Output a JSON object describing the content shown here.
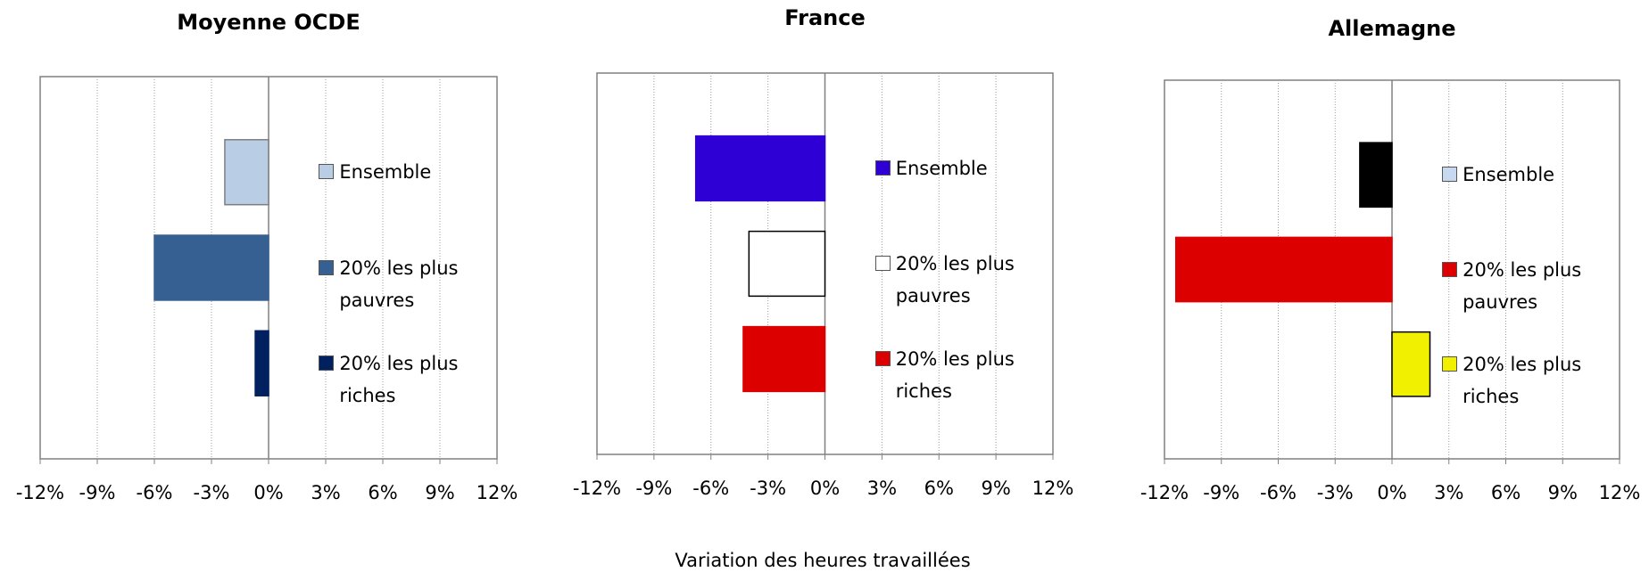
{
  "x_label": "Variation des heures travaillées",
  "chart_data": [
    {
      "type": "hbar",
      "title": "Moyenne OCDE",
      "categories": [
        "Ensemble",
        "20% les plus pauvres",
        "20% les plus riches"
      ],
      "values": [
        -2.3,
        -6,
        -0.7
      ],
      "colors": [
        "#b9cde5",
        "#376092",
        "#002060"
      ],
      "edge_colors": [
        "#7f7f7f",
        "#376092",
        "#002060"
      ],
      "legend_colors": [
        "#b9cde5",
        "#376092",
        "#002060"
      ],
      "xlim": [
        -12,
        12
      ],
      "xticks": [
        {
          "value": -12,
          "label": "-12%"
        },
        {
          "value": -9,
          "label": "-9%"
        },
        {
          "value": -6,
          "label": "-6%"
        },
        {
          "value": -3,
          "label": "-3%"
        },
        {
          "value": 0,
          "label": "0%"
        },
        {
          "value": 3,
          "label": "3%"
        },
        {
          "value": 6,
          "label": "6%"
        },
        {
          "value": 9,
          "label": "9%"
        },
        {
          "value": 12,
          "label": "12%"
        }
      ],
      "grid": true
    },
    {
      "type": "hbar",
      "title": "France",
      "categories": [
        "Ensemble",
        "20% les plus pauvres",
        "20% les plus riches"
      ],
      "values": [
        -6.8,
        -4,
        -4.3
      ],
      "colors": [
        "#2e00d6",
        "#ffffff",
        "#dd0000"
      ],
      "edge_colors": [
        "#2e00d6",
        "#000000",
        "#dd0000"
      ],
      "legend_colors": [
        "#2e00d6",
        "#ffffff",
        "#dd0000"
      ],
      "xlim": [
        -12,
        12
      ],
      "xticks": [
        {
          "value": -12,
          "label": "-12%"
        },
        {
          "value": -9,
          "label": "-9%"
        },
        {
          "value": -6,
          "label": "-6%"
        },
        {
          "value": -3,
          "label": "-3%"
        },
        {
          "value": 0,
          "label": "0%"
        },
        {
          "value": 3,
          "label": "3%"
        },
        {
          "value": 6,
          "label": "6%"
        },
        {
          "value": 9,
          "label": "9%"
        },
        {
          "value": 12,
          "label": "12%"
        }
      ],
      "grid": true
    },
    {
      "type": "hbar",
      "title": "Allemagne",
      "categories": [
        "Ensemble",
        "20% les plus pauvres",
        "20% les plus riches"
      ],
      "values": [
        -1.7,
        -11.4,
        2
      ],
      "colors": [
        "#000000",
        "#dd0000",
        "#f0f000"
      ],
      "edge_colors": [
        "#000000",
        "#dd0000",
        "#000000"
      ],
      "legend_colors": [
        "#c6d9f1",
        "#dd0000",
        "#f0f000"
      ],
      "xlim": [
        -12,
        12
      ],
      "xticks": [
        {
          "value": -12,
          "label": "-12%"
        },
        {
          "value": -9,
          "label": "-9%"
        },
        {
          "value": -6,
          "label": "-6%"
        },
        {
          "value": -3,
          "label": "-3%"
        },
        {
          "value": 0,
          "label": "0%"
        },
        {
          "value": 3,
          "label": "3%"
        },
        {
          "value": 6,
          "label": "6%"
        },
        {
          "value": 9,
          "label": "9%"
        },
        {
          "value": 12,
          "label": "12%"
        }
      ],
      "grid": true
    }
  ]
}
